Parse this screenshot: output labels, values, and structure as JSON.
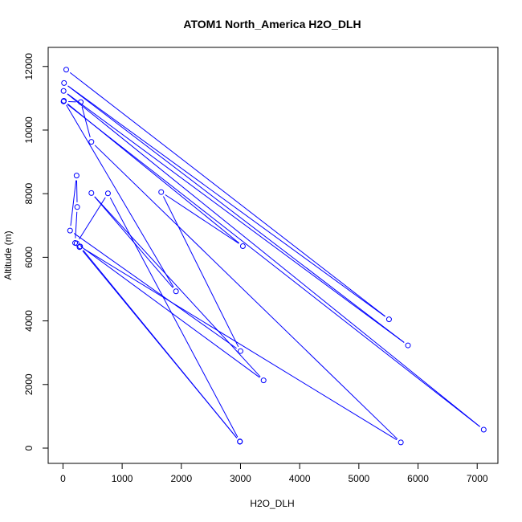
{
  "chart_data": {
    "type": "line",
    "title": "ATOM1 North_America H2O_DLH",
    "xlabel": "H2O_DLH",
    "ylabel": "Altitude (m)",
    "xlim": [
      -250,
      7350
    ],
    "ylim": [
      -480,
      12600
    ],
    "x_ticks": [
      0,
      1000,
      2000,
      3000,
      4000,
      5000,
      6000,
      7000
    ],
    "y_ticks": [
      0,
      2000,
      4000,
      6000,
      8000,
      10000,
      12000
    ],
    "grid": false,
    "line_color": "#0000ff",
    "marker": "open-circle",
    "series": [
      {
        "x": [
          55,
          5510,
          18,
          5830,
          10,
          7110,
          10,
          300,
          480,
          5710,
          290,
          2990,
          280,
          205,
          240,
          230,
          120,
          3000,
          1660,
          3040,
          15,
          1910,
          480,
          3390,
          230,
          760,
          2990
        ],
        "y": [
          11900,
          4050,
          11480,
          3230,
          11230,
          580,
          10900,
          10880,
          9630,
          180,
          6340,
          200,
          6320,
          6450,
          7580,
          8570,
          6840,
          3050,
          8050,
          6350,
          10920,
          4930,
          8020,
          2130,
          6440,
          8010,
          210
        ]
      }
    ]
  }
}
